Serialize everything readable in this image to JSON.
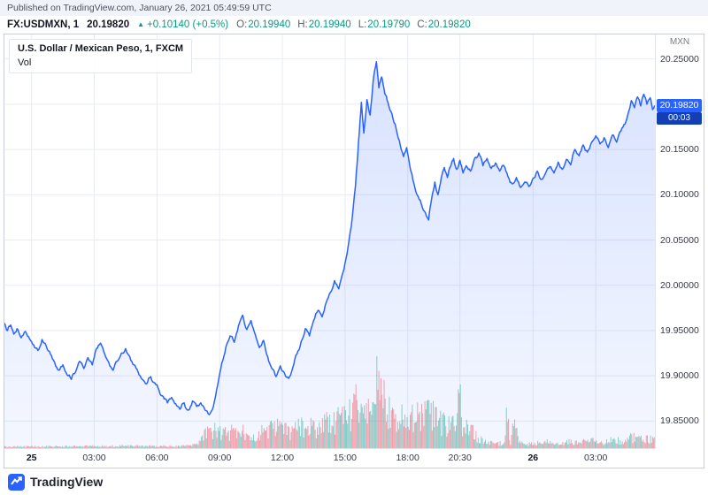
{
  "published_bar": {
    "text": "Published on TradingView.com, January 26, 2021 05:49:59 UTC"
  },
  "toolbar": {
    "symbol": "FX:USDMXN, 1",
    "last_price": "20.19820",
    "direction_icon": "▲",
    "change": "+0.10140 (+0.5%)",
    "ohlc": [
      {
        "label": "O:",
        "value": "20.19940"
      },
      {
        "label": "H:",
        "value": "20.19940"
      },
      {
        "label": "L:",
        "value": "20.19790"
      },
      {
        "label": "C:",
        "value": "20.19820"
      }
    ]
  },
  "legend": {
    "title": "U.S. Dollar / Mexican Peso, 1, FXCM",
    "indicator": "Vol"
  },
  "price_axis": {
    "currency_label": "MXN",
    "last_badge": "20.19820",
    "countdown_badge": "00:03"
  },
  "footer": {
    "brand": "TradingView"
  },
  "colors": {
    "line": "#2962FF",
    "area_top": "rgba(41,98,255,0.18)",
    "area_bottom": "rgba(41,98,255,0.05)",
    "grid": "#E8EBF2",
    "badge": "#2962FF",
    "countdown": "#143EB3",
    "up": "#089981",
    "down": "#F23645",
    "vol_up": "rgba(8,153,129,0.45)",
    "vol_down": "rgba(242,54,69,0.45)"
  },
  "chart_data": {
    "type": "area",
    "title": "U.S. Dollar / Mexican Peso, 1, FXCM",
    "series_name": "FX:USDMXN 1-minute close",
    "x_unit": "hours since Jan 25 2021 00:00 UTC",
    "x_range": [
      -1.3,
      29.83
    ],
    "y_range": [
      19.82,
      20.277
    ],
    "last_price": 20.1982,
    "open": 20.1994,
    "high": 20.1994,
    "low": 20.1979,
    "close": 20.1982,
    "price_ticks": [
      {
        "label": "20.25000",
        "value": 20.25
      },
      {
        "label": "20.20000",
        "value": 20.2,
        "covered": true
      },
      {
        "label": "20.15000",
        "value": 20.15
      },
      {
        "label": "20.10000",
        "value": 20.1
      },
      {
        "label": "20.05000",
        "value": 20.05
      },
      {
        "label": "20.00000",
        "value": 20.0
      },
      {
        "label": "19.95000",
        "value": 19.95
      },
      {
        "label": "19.90000",
        "value": 19.9
      },
      {
        "label": "19.85000",
        "value": 19.85
      }
    ],
    "time_ticks": [
      {
        "label": "25",
        "t": 0,
        "bold": true
      },
      {
        "label": "03:00",
        "t": 3
      },
      {
        "label": "06:00",
        "t": 6
      },
      {
        "label": "09:00",
        "t": 9
      },
      {
        "label": "12:00",
        "t": 12
      },
      {
        "label": "15:00",
        "t": 15
      },
      {
        "label": "18:00",
        "t": 18
      },
      {
        "label": "20:30",
        "t": 20.5
      },
      {
        "label": "26",
        "t": 24,
        "bold": true
      },
      {
        "label": "03:00",
        "t": 27
      }
    ],
    "points": [
      [
        -1.3,
        19.958
      ],
      [
        -1.15,
        19.95
      ],
      [
        -1.0,
        19.956
      ],
      [
        -0.85,
        19.946
      ],
      [
        -0.7,
        19.952
      ],
      [
        -0.5,
        19.942
      ],
      [
        -0.3,
        19.949
      ],
      [
        -0.1,
        19.941
      ],
      [
        0.1,
        19.934
      ],
      [
        0.3,
        19.928
      ],
      [
        0.5,
        19.94
      ],
      [
        0.7,
        19.933
      ],
      [
        0.9,
        19.924
      ],
      [
        1.1,
        19.915
      ],
      [
        1.3,
        19.906
      ],
      [
        1.5,
        19.912
      ],
      [
        1.7,
        19.901
      ],
      [
        1.9,
        19.896
      ],
      [
        2.1,
        19.904
      ],
      [
        2.3,
        19.916
      ],
      [
        2.5,
        19.908
      ],
      [
        2.7,
        19.92
      ],
      [
        2.9,
        19.912
      ],
      [
        3.1,
        19.93
      ],
      [
        3.3,
        19.936
      ],
      [
        3.5,
        19.924
      ],
      [
        3.7,
        19.914
      ],
      [
        3.9,
        19.906
      ],
      [
        4.1,
        19.916
      ],
      [
        4.3,
        19.925
      ],
      [
        4.5,
        19.93
      ],
      [
        4.7,
        19.921
      ],
      [
        4.9,
        19.912
      ],
      [
        5.1,
        19.904
      ],
      [
        5.3,
        19.896
      ],
      [
        5.5,
        19.891
      ],
      [
        5.7,
        19.899
      ],
      [
        5.9,
        19.892
      ],
      [
        6.1,
        19.884
      ],
      [
        6.3,
        19.877
      ],
      [
        6.5,
        19.87
      ],
      [
        6.7,
        19.876
      ],
      [
        6.9,
        19.869
      ],
      [
        7.1,
        19.863
      ],
      [
        7.3,
        19.87
      ],
      [
        7.5,
        19.862
      ],
      [
        7.7,
        19.872
      ],
      [
        7.9,
        19.866
      ],
      [
        8.1,
        19.87
      ],
      [
        8.3,
        19.862
      ],
      [
        8.5,
        19.857
      ],
      [
        8.7,
        19.866
      ],
      [
        8.9,
        19.889
      ],
      [
        9.1,
        19.914
      ],
      [
        9.3,
        19.932
      ],
      [
        9.5,
        19.944
      ],
      [
        9.7,
        19.937
      ],
      [
        9.9,
        19.955
      ],
      [
        10.1,
        19.967
      ],
      [
        10.3,
        19.951
      ],
      [
        10.5,
        19.961
      ],
      [
        10.7,
        19.946
      ],
      [
        10.9,
        19.931
      ],
      [
        11.1,
        19.939
      ],
      [
        11.3,
        19.921
      ],
      [
        11.5,
        19.908
      ],
      [
        11.7,
        19.899
      ],
      [
        11.9,
        19.911
      ],
      [
        12.1,
        19.903
      ],
      [
        12.3,
        19.897
      ],
      [
        12.5,
        19.909
      ],
      [
        12.7,
        19.924
      ],
      [
        12.9,
        19.938
      ],
      [
        13.1,
        19.952
      ],
      [
        13.3,
        19.944
      ],
      [
        13.5,
        19.961
      ],
      [
        13.7,
        19.972
      ],
      [
        13.9,
        19.965
      ],
      [
        14.1,
        19.981
      ],
      [
        14.3,
        19.992
      ],
      [
        14.5,
        20.005
      ],
      [
        14.7,
        19.996
      ],
      [
        14.9,
        20.014
      ],
      [
        15.1,
        20.035
      ],
      [
        15.3,
        20.065
      ],
      [
        15.5,
        20.11
      ],
      [
        15.65,
        20.16
      ],
      [
        15.78,
        20.202
      ],
      [
        15.9,
        20.168
      ],
      [
        16.05,
        20.205
      ],
      [
        16.2,
        20.188
      ],
      [
        16.35,
        20.226
      ],
      [
        16.5,
        20.247
      ],
      [
        16.62,
        20.218
      ],
      [
        16.75,
        20.23
      ],
      [
        16.9,
        20.212
      ],
      [
        17.05,
        20.202
      ],
      [
        17.2,
        20.192
      ],
      [
        17.4,
        20.178
      ],
      [
        17.6,
        20.16
      ],
      [
        17.8,
        20.142
      ],
      [
        17.95,
        20.152
      ],
      [
        18.1,
        20.132
      ],
      [
        18.3,
        20.112
      ],
      [
        18.5,
        20.098
      ],
      [
        18.7,
        20.086
      ],
      [
        18.9,
        20.076
      ],
      [
        19.0,
        20.072
      ],
      [
        19.15,
        20.096
      ],
      [
        19.3,
        20.114
      ],
      [
        19.45,
        20.1
      ],
      [
        19.6,
        20.118
      ],
      [
        19.75,
        20.13
      ],
      [
        19.9,
        20.119
      ],
      [
        20.05,
        20.131
      ],
      [
        20.2,
        20.14
      ],
      [
        20.35,
        20.128
      ],
      [
        20.5,
        20.138
      ],
      [
        20.65,
        20.124
      ],
      [
        20.8,
        20.132
      ],
      [
        21.0,
        20.126
      ],
      [
        21.2,
        20.14
      ],
      [
        21.4,
        20.146
      ],
      [
        21.6,
        20.132
      ],
      [
        21.8,
        20.14
      ],
      [
        22.0,
        20.129
      ],
      [
        22.2,
        20.135
      ],
      [
        22.4,
        20.126
      ],
      [
        22.6,
        20.132
      ],
      [
        22.8,
        20.12
      ],
      [
        23.0,
        20.112
      ],
      [
        23.2,
        20.119
      ],
      [
        23.4,
        20.108
      ],
      [
        23.6,
        20.114
      ],
      [
        23.8,
        20.109
      ],
      [
        24.0,
        20.118
      ],
      [
        24.2,
        20.126
      ],
      [
        24.4,
        20.117
      ],
      [
        24.6,
        20.124
      ],
      [
        24.8,
        20.131
      ],
      [
        25.0,
        20.124
      ],
      [
        25.2,
        20.136
      ],
      [
        25.4,
        20.128
      ],
      [
        25.6,
        20.139
      ],
      [
        25.8,
        20.133
      ],
      [
        26.0,
        20.15
      ],
      [
        26.2,
        20.143
      ],
      [
        26.4,
        20.155
      ],
      [
        26.6,
        20.147
      ],
      [
        26.8,
        20.158
      ],
      [
        27.0,
        20.165
      ],
      [
        27.2,
        20.156
      ],
      [
        27.4,
        20.163
      ],
      [
        27.6,
        20.152
      ],
      [
        27.8,
        20.166
      ],
      [
        28.0,
        20.158
      ],
      [
        28.2,
        20.17
      ],
      [
        28.4,
        20.178
      ],
      [
        28.55,
        20.19
      ],
      [
        28.7,
        20.204
      ],
      [
        28.85,
        20.196
      ],
      [
        29.0,
        20.208
      ],
      [
        29.15,
        20.198
      ],
      [
        29.3,
        20.211
      ],
      [
        29.45,
        20.2
      ],
      [
        29.6,
        20.207
      ],
      [
        29.72,
        20.194
      ],
      [
        29.83,
        20.198
      ]
    ],
    "volume_profile": [
      [
        -1.3,
        0.025
      ],
      [
        2,
        0.03
      ],
      [
        5,
        0.035
      ],
      [
        7,
        0.03
      ],
      [
        7.9,
        0.05
      ],
      [
        8.2,
        0.2
      ],
      [
        8.8,
        0.3
      ],
      [
        9.4,
        0.24
      ],
      [
        10,
        0.3
      ],
      [
        10.6,
        0.22
      ],
      [
        11.2,
        0.27
      ],
      [
        11.8,
        0.32
      ],
      [
        12.4,
        0.26
      ],
      [
        13,
        0.35
      ],
      [
        13.6,
        0.3
      ],
      [
        14.2,
        0.4
      ],
      [
        14.8,
        0.45
      ],
      [
        15.3,
        0.55
      ],
      [
        15.7,
        0.85
      ],
      [
        16,
        0.65
      ],
      [
        16.3,
        0.9
      ],
      [
        16.55,
        1.0
      ],
      [
        16.9,
        0.7
      ],
      [
        17.3,
        0.55
      ],
      [
        17.8,
        0.45
      ],
      [
        18.3,
        0.5
      ],
      [
        18.8,
        0.55
      ],
      [
        19.2,
        0.5
      ],
      [
        19.6,
        0.4
      ],
      [
        20,
        0.33
      ],
      [
        20.3,
        0.38
      ],
      [
        20.45,
        0.95
      ],
      [
        20.6,
        0.35
      ],
      [
        21,
        0.28
      ],
      [
        21.4,
        0.14
      ],
      [
        21.8,
        0.09
      ],
      [
        22.2,
        0.07
      ],
      [
        22.6,
        0.08
      ],
      [
        22.75,
        0.6
      ],
      [
        22.9,
        0.1
      ],
      [
        23.1,
        0.55
      ],
      [
        23.3,
        0.09
      ],
      [
        23.7,
        0.07
      ],
      [
        24.2,
        0.08
      ],
      [
        24.7,
        0.1
      ],
      [
        25.2,
        0.08
      ],
      [
        25.7,
        0.1
      ],
      [
        26.2,
        0.09
      ],
      [
        26.7,
        0.11
      ],
      [
        27.2,
        0.1
      ],
      [
        27.7,
        0.12
      ],
      [
        28.2,
        0.12
      ],
      [
        28.6,
        0.16
      ],
      [
        29,
        0.2
      ],
      [
        29.4,
        0.15
      ],
      [
        29.83,
        0.12
      ]
    ],
    "legend_position": "top-left",
    "grid": true
  }
}
